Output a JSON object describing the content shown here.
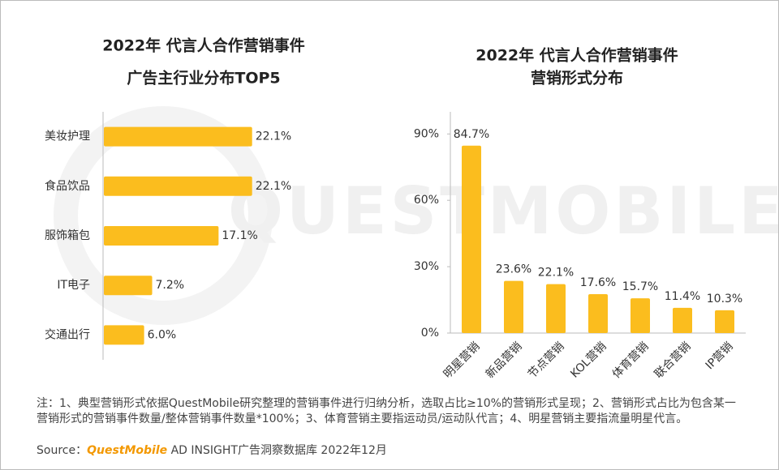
{
  "chart_data": [
    {
      "type": "hbar",
      "title": "2022年 代言人合作营销事件",
      "subtitle": "广告主行业分布TOP5",
      "categories": [
        "美妆护理",
        "食品饮品",
        "服饰箱包",
        "IT电子",
        "交通出行"
      ],
      "values": [
        22.1,
        22.1,
        17.1,
        7.2,
        6.0
      ],
      "value_labels": [
        "22.1%",
        "22.1%",
        "17.1%",
        "7.2%",
        "6.0%"
      ],
      "color": "#fbbd1e",
      "xlim": [
        0,
        30
      ]
    },
    {
      "type": "bar",
      "title": "2022年 代言人合作营销事件",
      "subtitle": "营销形式分布",
      "categories": [
        "明星营销",
        "新品营销",
        "节点营销",
        "KOL营销",
        "体育营销",
        "联合营销",
        "IP营销"
      ],
      "values": [
        84.7,
        23.6,
        22.1,
        17.6,
        15.7,
        11.4,
        10.3
      ],
      "value_labels": [
        "84.7%",
        "23.6%",
        "22.1%",
        "17.6%",
        "15.7%",
        "11.4%",
        "10.3%"
      ],
      "color": "#fbbd1e",
      "ylim": [
        0,
        100
      ],
      "yticks": [
        {
          "value": 0,
          "label": "0%"
        },
        {
          "value": 30,
          "label": "30%"
        },
        {
          "value": 60,
          "label": "60%"
        },
        {
          "value": 90,
          "label": "90%"
        }
      ],
      "grid": false
    }
  ],
  "watermark": "QUESTMOBILE",
  "footer": {
    "note": "注：1、典型营销形式依据QuestMobile研究整理的营销事件进行归纳分析，选取占比≥10%的营销形式呈现；2、营销形式占比为包含某一营销形式的营销事件数量/整体营销事件数量*100%；3、体育营销主要指运动员/运动队代言；4、明星营销主要指流量明星代言。",
    "source_label": "Source：",
    "source_brand": "QuestMobile",
    "source_text": "AD INSIGHT广告洞察数据库 2022年12月"
  }
}
